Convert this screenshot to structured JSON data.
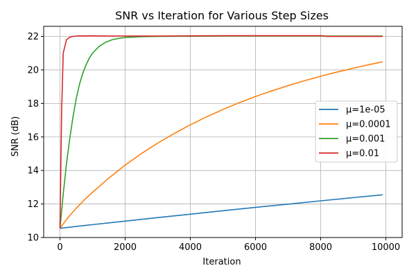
{
  "chart_data": {
    "type": "line",
    "title": "SNR vs Iteration for Various Step Sizes",
    "xlabel": "Iteration",
    "ylabel": "SNR (dB)",
    "xlim": [
      -500,
      10500
    ],
    "ylim": [
      10,
      22.6
    ],
    "xticks": [
      0,
      2000,
      4000,
      6000,
      8000,
      10000
    ],
    "yticks": [
      10,
      12,
      14,
      16,
      18,
      20,
      22
    ],
    "grid": true,
    "legend_position": "center-right",
    "series": [
      {
        "name": "μ=1e-05",
        "color": "#1f77b4",
        "x": [
          0,
          1000,
          2000,
          3000,
          4000,
          5000,
          6000,
          7000,
          8000,
          9000,
          9900
        ],
        "y": [
          10.55,
          10.77,
          10.98,
          11.19,
          11.39,
          11.6,
          11.8,
          11.99,
          12.19,
          12.38,
          12.55
        ]
      },
      {
        "name": "μ=0.0001",
        "color": "#ff7f0e",
        "x": [
          0,
          250,
          500,
          750,
          1000,
          1500,
          2000,
          2500,
          3000,
          3500,
          4000,
          4500,
          5000,
          5500,
          6000,
          6500,
          7000,
          7500,
          8000,
          8500,
          9000,
          9500,
          9900
        ],
        "y": [
          10.55,
          11.2,
          11.75,
          12.25,
          12.7,
          13.55,
          14.32,
          15.01,
          15.63,
          16.2,
          16.72,
          17.2,
          17.64,
          18.04,
          18.41,
          18.75,
          19.06,
          19.35,
          19.62,
          19.87,
          20.1,
          20.32,
          20.48
        ]
      },
      {
        "name": "μ=0.001",
        "color": "#2ca02c",
        "x": [
          0,
          100,
          200,
          300,
          400,
          500,
          600,
          700,
          800,
          900,
          1000,
          1200,
          1400,
          1600,
          1800,
          2000,
          2500,
          3000,
          4000,
          5000,
          6000,
          7000,
          8000,
          9000,
          9900
        ],
        "y": [
          10.55,
          12.6,
          14.4,
          15.9,
          17.2,
          18.3,
          19.15,
          19.8,
          20.3,
          20.7,
          21.0,
          21.4,
          21.65,
          21.8,
          21.88,
          21.93,
          21.98,
          22.0,
          22.01,
          22.02,
          22.02,
          22.02,
          22.02,
          22.02,
          22.02
        ]
      },
      {
        "name": "μ=0.01",
        "color": "#d62728",
        "x": [
          0,
          50,
          100,
          200,
          300,
          400,
          500,
          700,
          1000,
          1500,
          2000,
          3000,
          4000,
          5000,
          6000,
          7000,
          8000,
          8200,
          9000,
          9900
        ],
        "y": [
          10.55,
          17.5,
          21.0,
          21.8,
          21.95,
          22.0,
          22.02,
          22.03,
          22.03,
          22.02,
          22.02,
          22.02,
          22.03,
          22.04,
          22.04,
          22.04,
          22.04,
          22.0,
          22.0,
          22.0
        ]
      }
    ]
  }
}
